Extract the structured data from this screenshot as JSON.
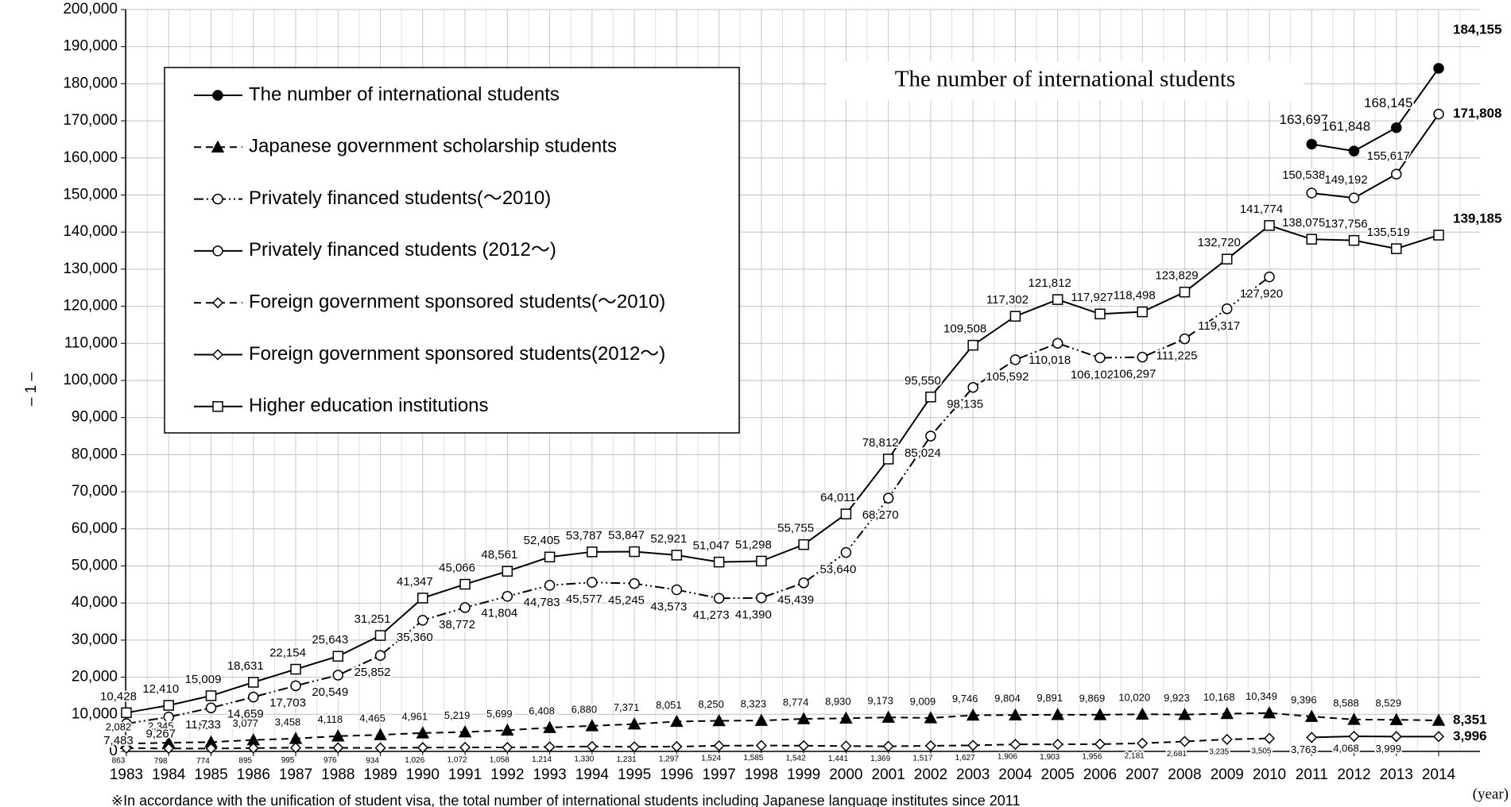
{
  "chart_data": {
    "type": "line",
    "title": "The number of international students",
    "x_label": "(year)",
    "page_number": "– 1 –",
    "note": "※In accordance with the unification of student visa, the total number of international students including Japanese language institutes since 2011",
    "categories": [
      "1983",
      "1984",
      "1985",
      "1986",
      "1987",
      "1988",
      "1989",
      "1990",
      "1991",
      "1992",
      "1993",
      "1994",
      "1995",
      "1996",
      "1997",
      "1998",
      "1999",
      "2000",
      "2001",
      "2002",
      "2003",
      "2004",
      "2005",
      "2006",
      "2007",
      "2008",
      "2009",
      "2010",
      "2011",
      "2012",
      "2013",
      "2014"
    ],
    "ylim": [
      0,
      200000
    ],
    "yticks": [
      0,
      {
        "value": 10000,
        "label": "10,000"
      },
      {
        "value": 20000,
        "label": "20,000"
      },
      {
        "value": 30000,
        "label": "30,000"
      },
      {
        "value": 40000,
        "label": "40,000"
      },
      {
        "value": 50000,
        "label": "50,000"
      },
      {
        "value": 60000,
        "label": "60,000"
      },
      {
        "value": 70000,
        "label": "70,000"
      },
      {
        "value": 80000,
        "label": "80,000"
      },
      {
        "value": 90000,
        "label": "90,000"
      },
      {
        "value": 100000,
        "label": "100,000"
      },
      {
        "value": 110000,
        "label": "110,000"
      },
      {
        "value": 120000,
        "label": "120,000"
      },
      {
        "value": 130000,
        "label": "130,000"
      },
      {
        "value": 140000,
        "label": "140,000"
      },
      {
        "value": 150000,
        "label": "150,000"
      },
      {
        "value": 160000,
        "label": "160,000"
      },
      {
        "value": 170000,
        "label": "170,000"
      },
      {
        "value": 180000,
        "label": "180,000"
      },
      {
        "value": 190000,
        "label": "190,000"
      },
      {
        "value": 200000,
        "label": "200,000"
      }
    ],
    "grid": true,
    "legend": "upper left",
    "series": [
      {
        "name": "The number of international students",
        "color": "#000000",
        "dash": "solid",
        "marker": "circle-filled",
        "values": [
          null,
          null,
          null,
          null,
          null,
          null,
          null,
          null,
          null,
          null,
          null,
          null,
          null,
          null,
          null,
          null,
          null,
          null,
          null,
          null,
          null,
          null,
          null,
          null,
          null,
          null,
          null,
          null,
          163697,
          161848,
          168145,
          184155
        ],
        "value_labels": [
          null,
          null,
          null,
          null,
          null,
          null,
          null,
          null,
          null,
          null,
          null,
          null,
          null,
          null,
          null,
          null,
          null,
          null,
          null,
          null,
          null,
          null,
          null,
          null,
          null,
          null,
          null,
          null,
          "163,697",
          "161,848",
          "168,145",
          "184,155"
        ]
      },
      {
        "name": "Japanese government scholarship students",
        "color": "#000000",
        "dash": "dashed",
        "marker": "triangle-filled",
        "values": [
          2082,
          2345,
          2502,
          3077,
          3458,
          4118,
          4465,
          4961,
          5219,
          5699,
          6408,
          6880,
          7371,
          8051,
          8250,
          8323,
          8774,
          8930,
          9173,
          9009,
          9746,
          9804,
          9891,
          9869,
          10020,
          9923,
          10168,
          10349,
          9396,
          8588,
          8529,
          8351
        ],
        "value_labels": [
          "2,082",
          "2,345",
          "2,502",
          "3,077",
          "3,458",
          "4,118",
          "4,465",
          "4,961",
          "5,219",
          "5,699",
          "6,408",
          "6,880",
          "7,371",
          "8,051",
          "8,250",
          "8,323",
          "8,774",
          "8,930",
          "9,173",
          "9,009",
          "9,746",
          "9,804",
          "9,891",
          "9,869",
          "10,020",
          "9,923",
          "10,168",
          "10,349",
          "9,396",
          "8,588",
          "8,529",
          "8,351"
        ]
      },
      {
        "name": "Privately financed students(～2010)",
        "color": "#000000",
        "dash": "dash-dot-dot",
        "marker": "circle-open",
        "values": [
          7483,
          9267,
          11733,
          14659,
          17703,
          20549,
          25852,
          35360,
          38772,
          41804,
          44783,
          45577,
          45245,
          43573,
          41273,
          41390,
          45439,
          53640,
          68270,
          85024,
          98135,
          105592,
          110018,
          106102,
          106297,
          111225,
          119317,
          127920,
          null,
          null,
          null,
          null
        ],
        "value_labels": [
          "7,483",
          "9,267",
          "11,733",
          "14,659",
          "17,703",
          "20,549",
          "25,852",
          "35,360",
          "38,772",
          "41,804",
          "44,783",
          "45,577",
          "45,245",
          "43,573",
          "41,273",
          "41,390",
          "45,439",
          "53,640",
          "68,270",
          "85,024",
          "98,135",
          "105,592",
          "110,018",
          "106,102",
          "106,297",
          "111,225",
          "119,317",
          "127,920",
          null,
          null,
          null,
          null
        ]
      },
      {
        "name": "Privately financed students (2012～)",
        "color": "#000000",
        "dash": "solid",
        "marker": "circle-open",
        "values": [
          null,
          null,
          null,
          null,
          null,
          null,
          null,
          null,
          null,
          null,
          null,
          null,
          null,
          null,
          null,
          null,
          null,
          null,
          null,
          null,
          null,
          null,
          null,
          null,
          null,
          null,
          null,
          null,
          150538,
          149192,
          155617,
          171808
        ],
        "value_labels": [
          null,
          null,
          null,
          null,
          null,
          null,
          null,
          null,
          null,
          null,
          null,
          null,
          null,
          null,
          null,
          null,
          null,
          null,
          null,
          null,
          null,
          null,
          null,
          null,
          null,
          null,
          null,
          null,
          "150,538",
          "149,192",
          "155,617",
          "171,808"
        ]
      },
      {
        "name": "Foreign government sponsored students(～2010)",
        "color": "#000000",
        "dash": "dashed",
        "marker": "diamond-open",
        "values": [
          863,
          798,
          774,
          895,
          995,
          976,
          934,
          1026,
          1072,
          1058,
          1214,
          1330,
          1231,
          1297,
          1524,
          1585,
          1542,
          1441,
          1369,
          1517,
          1627,
          1906,
          1903,
          1956,
          2181,
          2681,
          3235,
          3505,
          null,
          null,
          null,
          null
        ],
        "value_labels": [
          "863",
          "798",
          "774",
          "895",
          "995",
          "976",
          "934",
          "1,026",
          "1,072",
          "1,058",
          "1,214",
          "1,330",
          "1,231",
          "1,297",
          "1,524",
          "1,585",
          "1,542",
          "1,441",
          "1,369",
          "1,517",
          "1,627",
          "1,906",
          "1,903",
          "1,956",
          "2,181",
          "2,681",
          "3,235",
          "3,505",
          null,
          null,
          null,
          null
        ]
      },
      {
        "name": "Foreign government sponsored students(2012～)",
        "color": "#000000",
        "dash": "solid",
        "marker": "diamond-open",
        "values": [
          null,
          null,
          null,
          null,
          null,
          null,
          null,
          null,
          null,
          null,
          null,
          null,
          null,
          null,
          null,
          null,
          null,
          null,
          null,
          null,
          null,
          null,
          null,
          null,
          null,
          null,
          null,
          null,
          3763,
          4068,
          3999,
          3996
        ],
        "value_labels": [
          null,
          null,
          null,
          null,
          null,
          null,
          null,
          null,
          null,
          null,
          null,
          null,
          null,
          null,
          null,
          null,
          null,
          null,
          null,
          null,
          null,
          null,
          null,
          null,
          null,
          null,
          null,
          null,
          "3,763",
          "4,068",
          "3,999",
          "3,996"
        ]
      },
      {
        "name": "Higher education institutions",
        "color": "#000000",
        "dash": "solid",
        "marker": "square-open",
        "values": [
          10428,
          12410,
          15009,
          18631,
          22154,
          25643,
          31251,
          41347,
          45066,
          48561,
          52405,
          53787,
          53847,
          52921,
          51047,
          51298,
          55755,
          64011,
          78812,
          95550,
          109508,
          117302,
          121812,
          117927,
          118498,
          123829,
          132720,
          141774,
          138075,
          137756,
          135519,
          139185
        ],
        "value_labels": [
          "10,428",
          "12,410",
          "15,009",
          "18,631",
          "22,154",
          "25,643",
          "31,251",
          "41,347",
          "45,066",
          "48,561",
          "52,405",
          "53,787",
          "53,847",
          "52,921",
          "51,047",
          "51,298",
          "55,755",
          "64,011",
          "78,812",
          "95,550",
          "109,508",
          "117,302",
          "121,812",
          "117,927",
          "118,498",
          "123,829",
          "132,720",
          "141,774",
          "138,075",
          "137,756",
          "135,519",
          "139,185"
        ]
      }
    ]
  }
}
